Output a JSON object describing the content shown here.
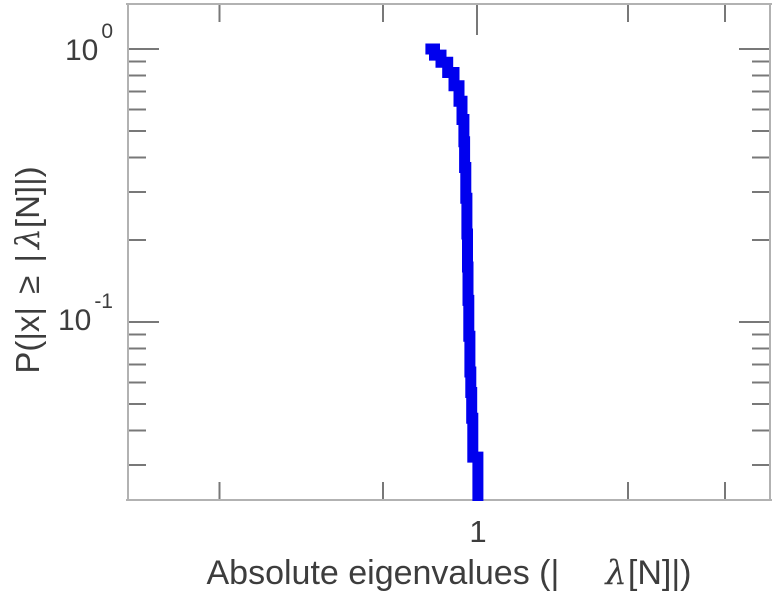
{
  "figure": {
    "background": "#ffffff"
  },
  "chart_data": {
    "type": "line",
    "subtype": "step_ccdf",
    "title": "",
    "xlabel_pre": "Absolute eigenvalues (|",
    "xlabel_lambda": "λ",
    "xlabel_post": "[N]|)",
    "ylabel_pre": "P(|x| ≥ |",
    "ylabel_lambda": "λ",
    "ylabel_post": "[N]|)",
    "x_scale": "log",
    "y_scale": "log",
    "xlim": [
      0.382,
      2.246
    ],
    "ylim": [
      0.0221,
      1.474
    ],
    "x_major_ticks": [
      {
        "value": 1,
        "label": "1"
      }
    ],
    "x_minor_ticks": [
      0.493,
      0.772,
      1.515,
      1.98
    ],
    "y_major_ticks": [
      {
        "value": 1,
        "base": "10",
        "exp": "0"
      },
      {
        "value": 0.1,
        "base": "10",
        "exp": "-1"
      }
    ],
    "y_minor_tick_subs": [
      2,
      3,
      4,
      5,
      6,
      7,
      8,
      9
    ],
    "grid": false,
    "legend": false,
    "line_color": "#0000ee",
    "line_width": 11,
    "frame_color": "#b2b2b2",
    "tick_color": "#787878",
    "text_color": "#3d3d3d",
    "series": [
      {
        "name": "eigenvalue-ccdf",
        "step": "after",
        "points": [
          [
            0.868,
            1.0
          ],
          [
            0.89,
            0.95
          ],
          [
            0.906,
            0.894
          ],
          [
            0.923,
            0.82
          ],
          [
            0.939,
            0.733
          ],
          [
            0.952,
            0.644
          ],
          [
            0.96,
            0.552
          ],
          [
            0.965,
            0.457
          ],
          [
            0.967,
            0.368
          ],
          [
            0.97,
            0.284
          ],
          [
            0.973,
            0.21
          ],
          [
            0.9745,
            0.159
          ],
          [
            0.976,
            0.12
          ],
          [
            0.978,
            0.0887
          ],
          [
            0.981,
            0.0656
          ],
          [
            0.9835,
            0.0552
          ],
          [
            0.986,
            0.0444
          ],
          [
            0.989,
            0.032
          ],
          [
            1.003,
            0.0221
          ]
        ]
      }
    ]
  }
}
